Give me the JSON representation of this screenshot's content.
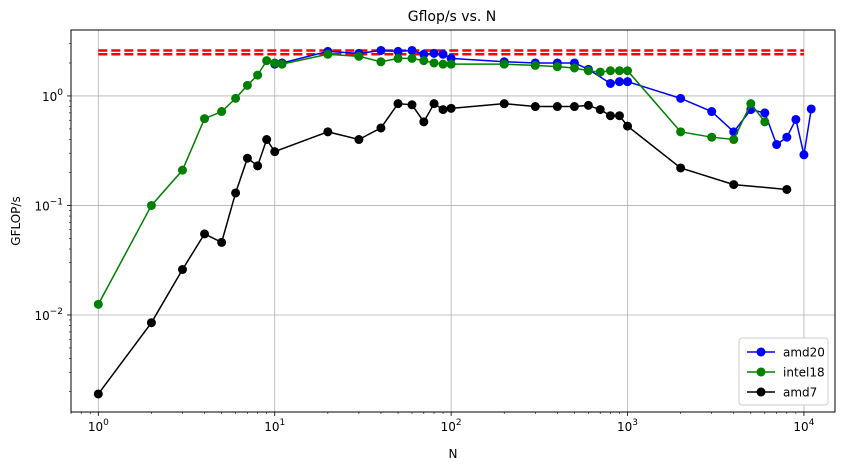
{
  "chart_data": {
    "type": "line",
    "title": "Gflop/s vs. N",
    "xlabel": "N",
    "ylabel": "GFLOP/s",
    "xscale": "log",
    "yscale": "log",
    "xlim": [
      0.7,
      15000
    ],
    "ylim": [
      0.0013,
      4.0
    ],
    "grid": true,
    "legend_position": "lower-right",
    "x_ticks": [
      {
        "value": 1,
        "base": "10",
        "exp": "0"
      },
      {
        "value": 10,
        "base": "10",
        "exp": "1"
      },
      {
        "value": 100,
        "base": "10",
        "exp": "2"
      },
      {
        "value": 1000,
        "base": "10",
        "exp": "3"
      },
      {
        "value": 10000,
        "base": "10",
        "exp": "4"
      }
    ],
    "y_ticks": [
      {
        "value": 0.01,
        "base": "10",
        "exp": "−2"
      },
      {
        "value": 0.1,
        "base": "10",
        "exp": "−1"
      },
      {
        "value": 1,
        "base": "10",
        "exp": "0"
      }
    ],
    "reference_lines": {
      "color": "#ff0000",
      "style": "dashed",
      "x_range": [
        1,
        10000
      ],
      "values": [
        2.4,
        2.6
      ]
    },
    "series": [
      {
        "name": "amd20",
        "color": "#0000ff",
        "x": [
          10,
          11,
          20,
          30,
          40,
          50,
          60,
          70,
          80,
          90,
          100,
          200,
          300,
          400,
          500,
          600,
          800,
          900,
          1000,
          2000,
          3000,
          4000,
          5000,
          6000,
          7000,
          8000,
          9000,
          10000,
          11000
        ],
        "y": [
          1.95,
          2.0,
          2.55,
          2.45,
          2.6,
          2.55,
          2.6,
          2.4,
          2.45,
          2.4,
          2.2,
          2.05,
          2.0,
          2.0,
          2.0,
          1.75,
          1.3,
          1.35,
          1.35,
          0.95,
          0.72,
          0.47,
          0.75,
          0.7,
          0.36,
          0.42,
          0.61,
          0.29,
          0.76
        ]
      },
      {
        "name": "intel18",
        "color": "#008000",
        "x": [
          1,
          2,
          3,
          4,
          5,
          6,
          7,
          8,
          9,
          10,
          11,
          20,
          30,
          40,
          50,
          60,
          70,
          80,
          90,
          100,
          200,
          300,
          400,
          500,
          600,
          700,
          800,
          900,
          1000,
          2000,
          3000,
          4000,
          5000,
          6000
        ],
        "y": [
          0.0125,
          0.1,
          0.21,
          0.62,
          0.72,
          0.95,
          1.25,
          1.55,
          2.1,
          2.0,
          1.95,
          2.4,
          2.3,
          2.05,
          2.2,
          2.2,
          2.1,
          2.0,
          1.95,
          1.95,
          1.95,
          1.9,
          1.85,
          1.8,
          1.7,
          1.65,
          1.7,
          1.7,
          1.7,
          0.47,
          0.42,
          0.4,
          0.85,
          0.58
        ]
      },
      {
        "name": "amd7",
        "color": "#000000",
        "x": [
          1,
          2,
          3,
          4,
          5,
          6,
          7,
          8,
          9,
          10,
          20,
          30,
          40,
          50,
          60,
          70,
          80,
          90,
          100,
          200,
          300,
          400,
          500,
          600,
          700,
          800,
          900,
          1000,
          2000,
          4000,
          8000
        ],
        "y": [
          0.0019,
          0.0085,
          0.026,
          0.055,
          0.046,
          0.13,
          0.27,
          0.23,
          0.4,
          0.31,
          0.47,
          0.4,
          0.51,
          0.85,
          0.83,
          0.58,
          0.85,
          0.75,
          0.77,
          0.85,
          0.8,
          0.8,
          0.8,
          0.82,
          0.75,
          0.66,
          0.66,
          0.53,
          0.22,
          0.155,
          0.14
        ]
      }
    ]
  }
}
